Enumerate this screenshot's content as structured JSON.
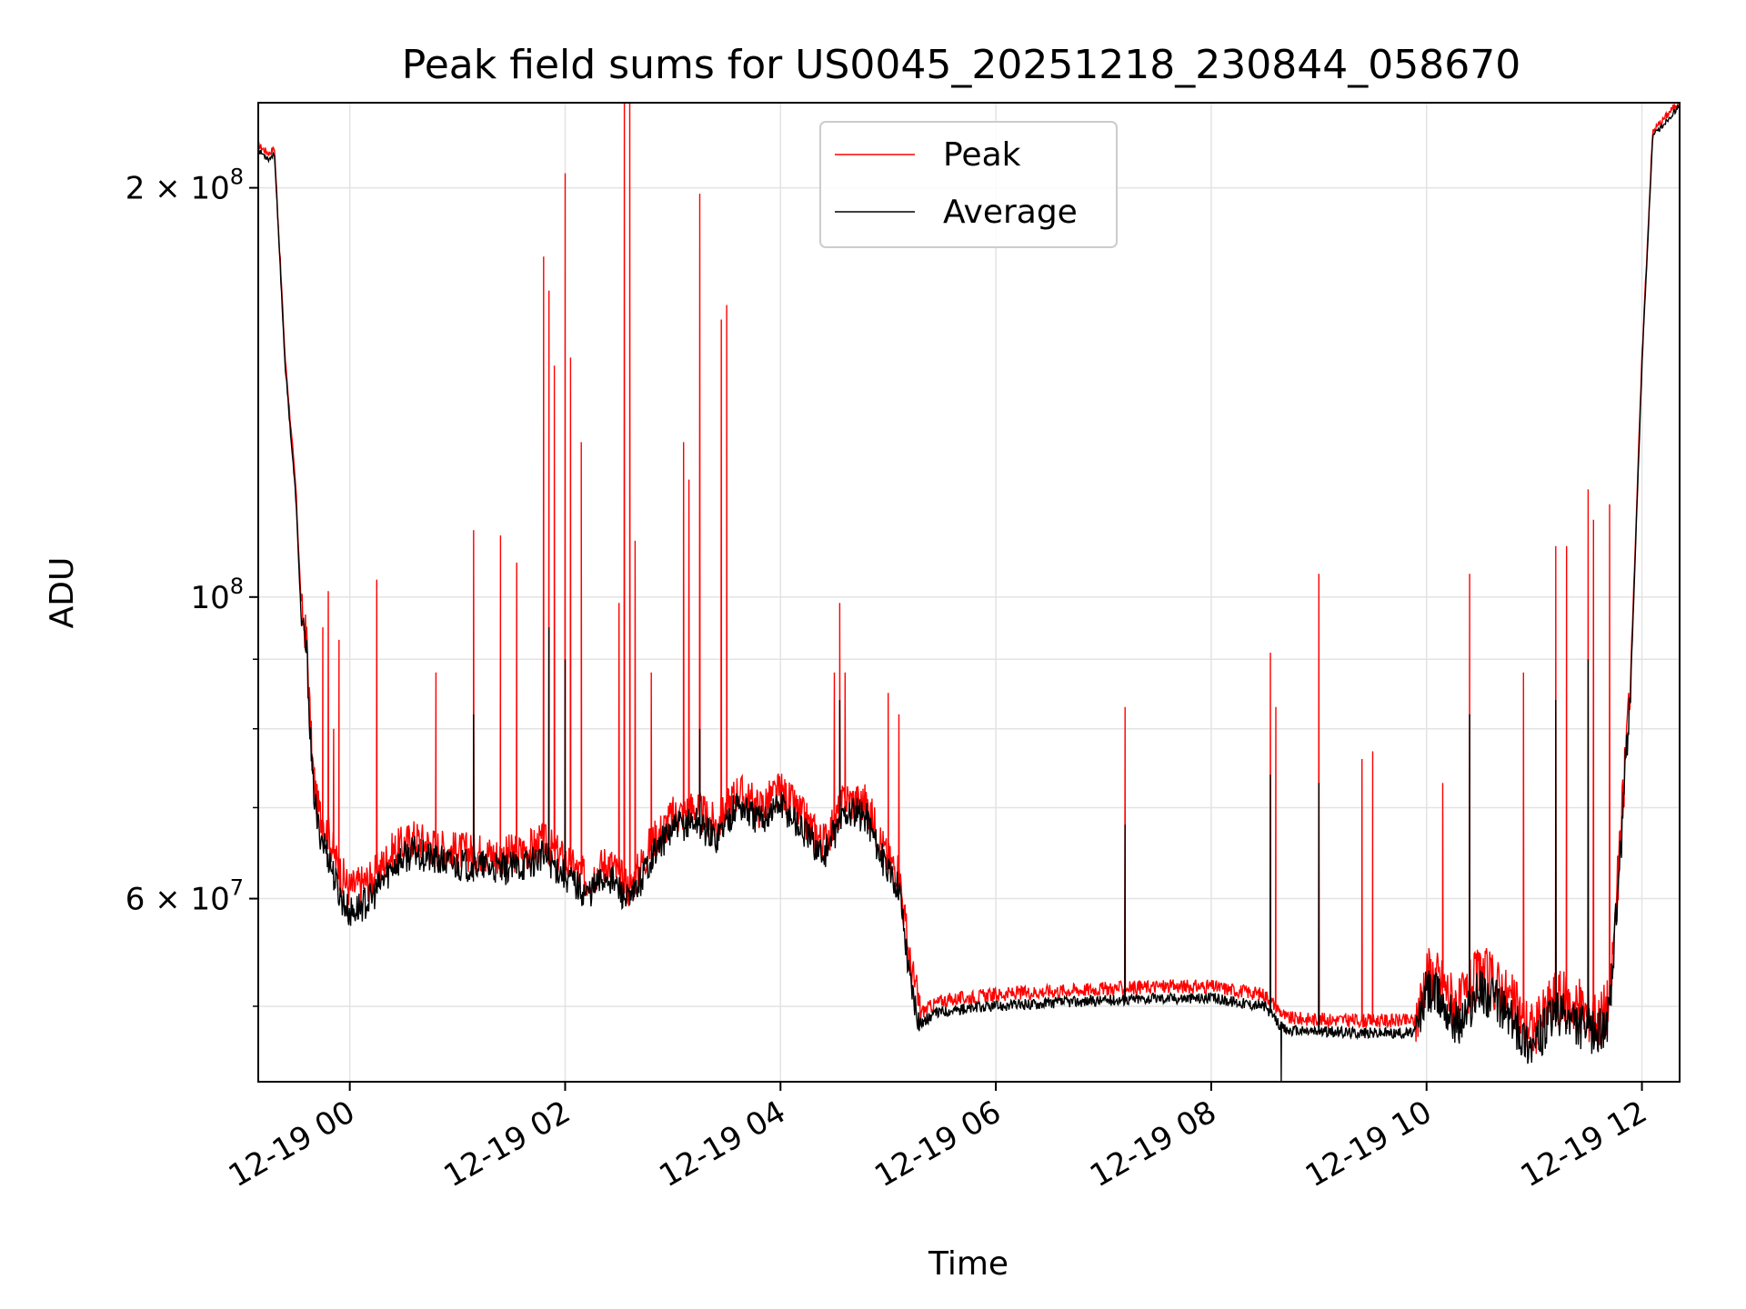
{
  "chart_data": {
    "type": "line",
    "title": "Peak field sums for US0045_20251218_230844_058670",
    "xlabel": "Time",
    "ylabel": "ADU",
    "yscale": "log",
    "grid": true,
    "legend_position": "top-center",
    "xlim_hours": [
      -0.85,
      12.35
    ],
    "ylim": [
      44000000,
      231000000
    ],
    "x_ticks": [
      {
        "hour": 0,
        "label": "12-19 00"
      },
      {
        "hour": 2,
        "label": "12-19 02"
      },
      {
        "hour": 4,
        "label": "12-19 04"
      },
      {
        "hour": 6,
        "label": "12-19 06"
      },
      {
        "hour": 8,
        "label": "12-19 08"
      },
      {
        "hour": 10,
        "label": "12-19 10"
      },
      {
        "hour": 12,
        "label": "12-19 12"
      }
    ],
    "y_major_ticks": [
      {
        "value": 60000000,
        "mantissa": "6",
        "exponent": "7"
      },
      {
        "value": 100000000,
        "mantissa": "",
        "exponent": "8"
      },
      {
        "value": 200000000,
        "mantissa": "2",
        "exponent": "8"
      }
    ],
    "y_minor_ticks": [
      50000000,
      70000000,
      80000000,
      90000000
    ],
    "series": [
      {
        "name": "Peak",
        "color": "#ff0000",
        "baseline_hours": [
          -0.85,
          -0.75,
          -0.7,
          -0.6,
          -0.5,
          -0.45,
          -0.4,
          -0.35,
          -0.3,
          -0.2,
          -0.1,
          0,
          0.2,
          0.4,
          0.6,
          0.8,
          1,
          1.2,
          1.4,
          1.6,
          1.8,
          2,
          2.2,
          2.4,
          2.6,
          2.8,
          3,
          3.2,
          3.4,
          3.6,
          3.8,
          4,
          4.2,
          4.4,
          4.6,
          4.8,
          5,
          5.1,
          5.2,
          5.3,
          5.4,
          5.5,
          6,
          6.5,
          7,
          7.5,
          8,
          8.5,
          8.65,
          8.7,
          9,
          9.5,
          9.9,
          10,
          10.1,
          10.3,
          10.5,
          10.7,
          10.9,
          11,
          11.2,
          11.4,
          11.6,
          11.7,
          11.8,
          11.9,
          12,
          12.1,
          12.35
        ],
        "baseline_values": [
          215000000,
          212000000,
          214000000,
          150000000,
          120000000,
          98000000,
          93000000,
          76000000,
          70000000,
          67000000,
          63000000,
          61000000,
          62000000,
          65000000,
          66500000,
          65500000,
          65000000,
          65000000,
          64500000,
          65000000,
          66000000,
          64000000,
          62000000,
          64000000,
          61000000,
          66000000,
          69000000,
          70000000,
          68000000,
          72000000,
          70000000,
          72000000,
          69000000,
          66000000,
          71000000,
          70500000,
          64000000,
          63000000,
          54000000,
          49500000,
          50000000,
          50500000,
          51000000,
          51300000,
          51500000,
          51700000,
          51700000,
          51000000,
          49500000,
          49000000,
          48900000,
          48800000,
          48800000,
          53000000,
          52500000,
          50000000,
          53000000,
          51500000,
          49000000,
          48000000,
          51000000,
          50000000,
          49000000,
          50500000,
          66000000,
          90000000,
          150000000,
          220000000,
          232000000
        ],
        "spikes_hours": [
          -0.25,
          -0.2,
          -0.15,
          -0.1,
          0.25,
          0.8,
          1.15,
          1.4,
          1.55,
          1.8,
          1.85,
          1.9,
          2.0,
          2.05,
          2.15,
          2.5,
          2.55,
          2.6,
          2.65,
          2.8,
          3.1,
          3.15,
          3.25,
          3.45,
          3.5,
          4.5,
          4.55,
          4.6,
          5.0,
          5.1,
          7.2,
          8.55,
          8.6,
          9.0,
          9.4,
          9.5,
          10.15,
          10.4,
          10.9,
          11.2,
          11.3,
          11.5,
          11.55,
          11.7
        ],
        "spikes_values": [
          95000000,
          101000000,
          80000000,
          93000000,
          103000000,
          88000000,
          112000000,
          111000000,
          106000000,
          178000000,
          168000000,
          148000000,
          205000000,
          150000000,
          130000000,
          99000000,
          255000000,
          260000000,
          110000000,
          88000000,
          130000000,
          122000000,
          198000000,
          160000000,
          164000000,
          88000000,
          99000000,
          88000000,
          85000000,
          82000000,
          83000000,
          91000000,
          83000000,
          104000000,
          76000000,
          77000000,
          73000000,
          104000000,
          88000000,
          109000000,
          109000000,
          120000000,
          114000000,
          117000000
        ]
      },
      {
        "name": "Average",
        "color": "#000000",
        "baseline_hours": [
          -0.85,
          -0.75,
          -0.7,
          -0.6,
          -0.5,
          -0.45,
          -0.4,
          -0.35,
          -0.3,
          -0.2,
          -0.1,
          0,
          0.2,
          0.4,
          0.6,
          0.8,
          1,
          1.2,
          1.4,
          1.6,
          1.8,
          2,
          2.2,
          2.4,
          2.6,
          2.8,
          3,
          3.2,
          3.4,
          3.6,
          3.8,
          4,
          4.2,
          4.4,
          4.6,
          4.8,
          5,
          5.1,
          5.2,
          5.3,
          5.4,
          5.5,
          6,
          6.5,
          7,
          7.5,
          8,
          8.5,
          8.65,
          8.7,
          9,
          9.5,
          9.9,
          10,
          10.1,
          10.3,
          10.5,
          10.7,
          10.9,
          11,
          11.2,
          11.4,
          11.6,
          11.7,
          11.8,
          11.9,
          12,
          12.1,
          12.35
        ],
        "baseline_values": [
          213000000,
          210000000,
          212000000,
          148000000,
          118000000,
          96000000,
          91000000,
          74000000,
          68000000,
          64500000,
          60500000,
          58500000,
          60000000,
          63500000,
          65000000,
          64000000,
          63500000,
          63500000,
          63000000,
          63500000,
          64500000,
          62500000,
          60500000,
          62500000,
          59500000,
          64500000,
          67500000,
          68500000,
          66500000,
          70500000,
          68500000,
          70500000,
          67500000,
          64500000,
          69500000,
          69000000,
          62500000,
          61500000,
          52500000,
          48500000,
          49200000,
          49600000,
          50000000,
          50300000,
          50500000,
          50700000,
          50700000,
          50000000,
          48300000,
          48000000,
          47900000,
          47800000,
          47800000,
          51500000,
          51000000,
          48500000,
          51500000,
          50000000,
          47500000,
          46800000,
          49500000,
          48500000,
          47800000,
          49300000,
          64500000,
          88000000,
          148000000,
          218000000,
          230000000
        ],
        "spikes_hours": [
          1.15,
          1.85,
          2.0,
          3.25,
          4.55,
          7.2,
          8.55,
          8.65,
          9.0,
          10.4,
          11.2,
          11.5
        ],
        "spikes_values": [
          82000000,
          95000000,
          90000000,
          80000000,
          84000000,
          68000000,
          74000000,
          44000000,
          73000000,
          82000000,
          84000000,
          90000000
        ]
      }
    ]
  }
}
